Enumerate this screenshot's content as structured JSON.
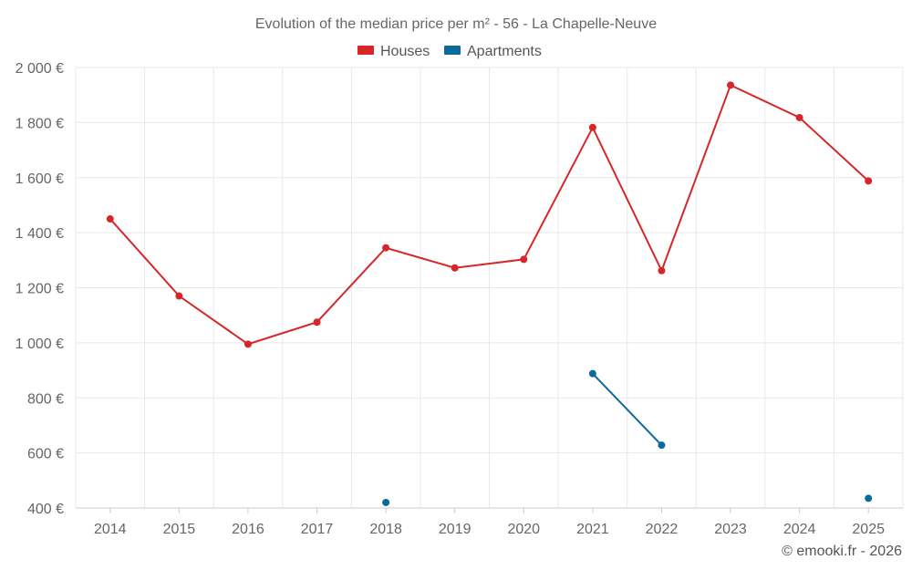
{
  "chart_data": {
    "type": "line",
    "title": "Evolution of the median price per m² - 56 - La Chapelle-Neuve",
    "categories": [
      "2014",
      "2015",
      "2016",
      "2017",
      "2018",
      "2019",
      "2020",
      "2021",
      "2022",
      "2023",
      "2024",
      "2025"
    ],
    "ylim": [
      400,
      2000
    ],
    "yticks": [
      400,
      600,
      800,
      1000,
      1200,
      1400,
      1600,
      1800,
      2000
    ],
    "ytick_labels": [
      "400 €",
      "600 €",
      "800 €",
      "1 000 €",
      "1 200 €",
      "1 400 €",
      "1 600 €",
      "1 800 €",
      "2 000 €"
    ],
    "grid": true,
    "legend_position": "top-center",
    "series": [
      {
        "name": "Houses",
        "color": "#d62728",
        "values": [
          1450,
          1170,
          995,
          1075,
          1345,
          1272,
          1303,
          1782,
          1262,
          1936,
          1818,
          1588
        ]
      },
      {
        "name": "Apartments",
        "color": "#0b6a9c",
        "values": [
          null,
          null,
          null,
          null,
          420,
          null,
          null,
          888,
          628,
          null,
          null,
          435
        ]
      }
    ]
  },
  "credit": "© emooki.fr - 2026"
}
